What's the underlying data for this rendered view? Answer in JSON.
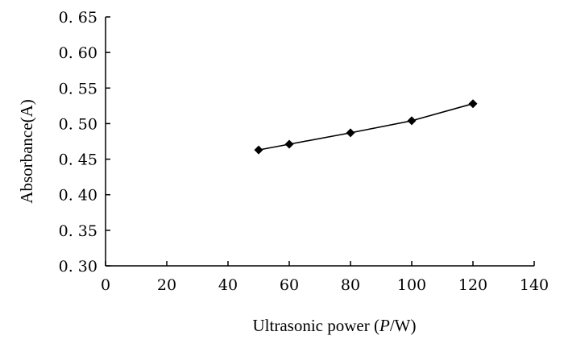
{
  "chart_data": {
    "type": "line",
    "title": "",
    "xlabel": "Ultrasonic power",
    "xlabel_unit_var": "P",
    "xlabel_unit": "/W",
    "ylabel": "Absorbance(A)",
    "xlim": [
      0,
      140
    ],
    "ylim": [
      0.3,
      0.65
    ],
    "xticks": [
      0,
      20,
      40,
      60,
      80,
      100,
      120,
      140
    ],
    "xtick_labels": [
      "0",
      "20",
      "40",
      "60",
      "80",
      "100",
      "120",
      "140"
    ],
    "yticks": [
      0.3,
      0.35,
      0.4,
      0.45,
      0.5,
      0.55,
      0.6,
      0.65
    ],
    "ytick_labels": [
      "0. 30",
      "0. 35",
      "0. 40",
      "0. 45",
      "0. 50",
      "0. 55",
      "0. 60",
      "0. 65"
    ],
    "grid": false,
    "series": [
      {
        "x": [
          50,
          60,
          80,
          100,
          120
        ],
        "y": [
          0.463,
          0.471,
          0.487,
          0.504,
          0.528
        ],
        "marker": "diamond",
        "color": "#000000"
      }
    ]
  }
}
